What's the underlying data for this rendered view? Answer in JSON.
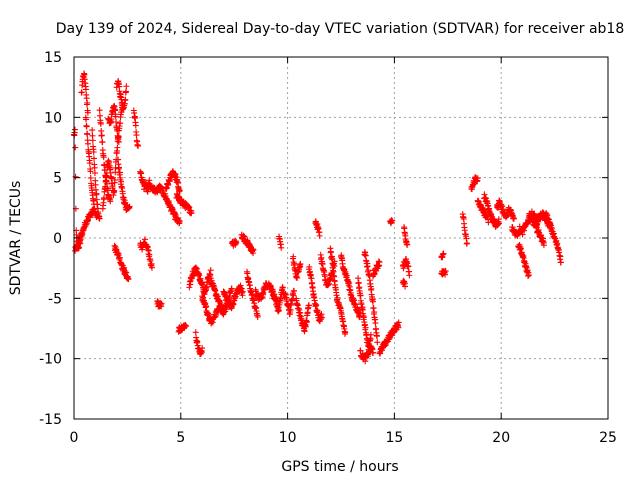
{
  "chart_data": {
    "type": "scatter",
    "title": "Day 139 of 2024, Sidereal Day-to-day VTEC variation (SDTVAR) for receiver ab18",
    "xlabel": "GPS time / hours",
    "ylabel": "SDTVAR / TECUs",
    "xlim": [
      0,
      25
    ],
    "ylim": [
      -15,
      15
    ],
    "xticks": [
      0,
      5,
      10,
      15,
      20,
      25
    ],
    "yticks": [
      -15,
      -10,
      -5,
      0,
      5,
      10,
      15
    ],
    "grid": true,
    "marker": "+",
    "color": "#ff0000",
    "series": [
      {
        "name": "SDTVAR",
        "segments": [
          {
            "from": 0.0,
            "to": 0.35,
            "values": [
              8.5,
              8.8,
              0.5,
              -0.5,
              -0.8,
              -0.6,
              -0.2,
              0.4
            ]
          },
          {
            "from": 0.05,
            "to": 0.9,
            "values": [
              -1.0,
              -0.6,
              0.0,
              0.6,
              1.2,
              1.6,
              2.0,
              2.2
            ]
          },
          {
            "from": 0.35,
            "to": 0.65,
            "values": [
              12.0,
              13.2,
              13.5,
              12.8,
              11.5,
              10.5
            ]
          },
          {
            "from": 0.55,
            "to": 1.05,
            "values": [
              10.0,
              8.5,
              7.0,
              5.5,
              4.0,
              3.0,
              2.2,
              1.8
            ]
          },
          {
            "from": 0.85,
            "to": 1.2,
            "values": [
              9.0,
              6.5,
              4.0,
              2.5,
              1.5
            ]
          },
          {
            "from": 1.2,
            "to": 1.7,
            "values": [
              10.5,
              9.0,
              7.5,
              6.0,
              5.0,
              4.2,
              3.5,
              3.0
            ]
          },
          {
            "from": 1.35,
            "to": 2.25,
            "values": [
              2.5,
              4.5,
              6.5,
              5.0,
              3.5,
              7.0,
              9.0,
              11.0
            ]
          },
          {
            "from": 1.6,
            "to": 2.1,
            "values": [
              10.0,
              9.5,
              10.5,
              11.0,
              9.0,
              8.0
            ]
          },
          {
            "from": 2.0,
            "to": 2.45,
            "values": [
              12.5,
              13.0,
              12.0,
              11.5,
              10.5,
              11.0,
              12.5
            ]
          },
          {
            "from": 2.05,
            "to": 2.6,
            "values": [
              6.5,
              5.5,
              4.5,
              3.5,
              3.0,
              2.5,
              2.6,
              2.7
            ]
          },
          {
            "from": 1.9,
            "to": 2.55,
            "values": [
              -0.8,
              -1.2,
              -1.8,
              -2.5,
              -3.0,
              -3.4
            ]
          },
          {
            "from": 2.8,
            "to": 3.0,
            "values": [
              10.5,
              10.0,
              9.0,
              8.0,
              7.5
            ]
          },
          {
            "from": 3.1,
            "to": 3.7,
            "values": [
              5.5,
              4.8,
              4.2,
              4.5,
              4.0,
              4.6,
              4.2,
              3.8
            ]
          },
          {
            "from": 3.1,
            "to": 3.65,
            "values": [
              -0.5,
              -0.8,
              -0.3,
              -0.7,
              -1.5,
              -2.5
            ]
          },
          {
            "from": 3.9,
            "to": 4.1,
            "values": [
              -5.4,
              -5.6,
              -5.5
            ]
          },
          {
            "from": 3.7,
            "to": 4.95,
            "values": [
              4.2,
              3.8,
              4.2,
              4.0,
              3.5,
              3.0,
              2.5,
              2.0,
              1.5,
              1.3
            ]
          },
          {
            "from": 4.3,
            "to": 4.95,
            "values": [
              4.0,
              4.5,
              5.0,
              5.5,
              5.2,
              4.6,
              3.8
            ]
          },
          {
            "from": 4.8,
            "to": 5.5,
            "values": [
              3.5,
              3.2,
              3.0,
              2.8,
              2.6,
              2.4,
              2.2
            ]
          },
          {
            "from": 4.9,
            "to": 5.25,
            "values": [
              -7.6,
              -7.4,
              -7.2
            ]
          },
          {
            "from": 5.4,
            "to": 6.4,
            "values": [
              -4.0,
              -3.0,
              -2.5,
              -3.0,
              -3.8,
              -4.5,
              -3.5,
              -2.8
            ]
          },
          {
            "from": 5.7,
            "to": 6.0,
            "values": [
              -8.0,
              -9.0,
              -9.6,
              -9.2
            ]
          },
          {
            "from": 6.0,
            "to": 7.0,
            "values": [
              -5.0,
              -5.5,
              -6.5,
              -7.0,
              -6.5,
              -6.0,
              -5.5,
              -6.0
            ]
          },
          {
            "from": 6.4,
            "to": 7.4,
            "values": [
              -3.5,
              -4.2,
              -4.8,
              -5.5,
              -6.2,
              -5.8,
              -4.8,
              -4.2
            ]
          },
          {
            "from": 7.0,
            "to": 7.9,
            "values": [
              -4.5,
              -5.0,
              -5.5,
              -5.8,
              -5.0,
              -4.5,
              -4.0,
              -4.6
            ]
          },
          {
            "from": 7.4,
            "to": 7.6,
            "values": [
              -0.5,
              -0.4
            ]
          },
          {
            "from": 7.85,
            "to": 8.4,
            "values": [
              0.2,
              -0.1,
              -0.4,
              -0.8,
              -1.2
            ]
          },
          {
            "from": 8.1,
            "to": 8.6,
            "values": [
              -3.0,
              -3.8,
              -4.5,
              -5.2,
              -5.8,
              -6.5
            ]
          },
          {
            "from": 8.5,
            "to": 9.4,
            "values": [
              -4.5,
              -5.0,
              -4.8,
              -4.0,
              -3.8,
              -4.3,
              -5.0
            ]
          },
          {
            "from": 9.3,
            "to": 9.85,
            "values": [
              -4.5,
              -4.8,
              -5.5,
              -6.0,
              -5.0,
              -4.2,
              -4.8
            ]
          },
          {
            "from": 9.6,
            "to": 9.7,
            "values": [
              0.0,
              -0.6
            ]
          },
          {
            "from": 9.9,
            "to": 10.3,
            "values": [
              -4.8,
              -5.5,
              -6.2,
              -5.0,
              -4.5
            ]
          },
          {
            "from": 10.25,
            "to": 10.6,
            "values": [
              -1.5,
              -2.5,
              -3.2,
              -2.8,
              -2.0
            ]
          },
          {
            "from": 10.4,
            "to": 11.0,
            "values": [
              -5.0,
              -5.8,
              -6.5,
              -7.2,
              -7.6,
              -6.8,
              -5.5
            ]
          },
          {
            "from": 11.0,
            "to": 11.6,
            "values": [
              -2.5,
              -3.2,
              -4.5,
              -5.5,
              -6.2,
              -6.8,
              -6.4
            ]
          },
          {
            "from": 11.3,
            "to": 11.5,
            "values": [
              1.4,
              0.4
            ]
          },
          {
            "from": 11.55,
            "to": 12.2,
            "values": [
              -1.5,
              -2.5,
              -3.5,
              -4.0,
              -3.5,
              -2.8,
              -2.0
            ]
          },
          {
            "from": 12.0,
            "to": 12.7,
            "values": [
              -1.0,
              -2.0,
              -3.5,
              -5.0,
              -5.5,
              -6.2,
              -7.0,
              -8.0
            ]
          },
          {
            "from": 12.5,
            "to": 13.4,
            "values": [
              -1.5,
              -2.5,
              -3.2,
              -4.0,
              -5.0,
              -5.5,
              -6.0,
              -6.5
            ]
          },
          {
            "from": 13.3,
            "to": 13.9,
            "values": [
              -3.5,
              -4.5,
              -5.5,
              -6.5,
              -7.5,
              -8.5,
              -9.0,
              -8.0
            ]
          },
          {
            "from": 13.4,
            "to": 14.0,
            "values": [
              -9.5,
              -9.8,
              -10.0,
              -9.6,
              -9.0,
              -9.4
            ]
          },
          {
            "from": 13.6,
            "to": 14.2,
            "values": [
              -1.2,
              -2.0,
              -3.0,
              -4.0,
              -5.5,
              -7.0,
              -8.5
            ]
          },
          {
            "from": 14.0,
            "to": 14.3,
            "values": [
              -3.0,
              -2.5,
              -2.0
            ]
          },
          {
            "from": 14.3,
            "to": 15.2,
            "values": [
              -9.5,
              -9.0,
              -8.5,
              -8.0,
              -7.5,
              -7.2
            ]
          },
          {
            "from": 14.8,
            "to": 14.9,
            "values": [
              1.4
            ]
          },
          {
            "from": 15.4,
            "to": 15.7,
            "values": [
              -2.5,
              -2.0,
              -1.8,
              -2.2,
              -3.0
            ]
          },
          {
            "from": 15.45,
            "to": 15.6,
            "values": [
              0.8,
              0.0,
              -0.5
            ]
          },
          {
            "from": 15.4,
            "to": 15.5,
            "values": [
              -3.5,
              -3.8
            ]
          },
          {
            "from": 17.2,
            "to": 17.3,
            "values": [
              -1.5
            ]
          },
          {
            "from": 17.2,
            "to": 17.4,
            "values": [
              -2.8,
              -3.0,
              -2.9
            ]
          },
          {
            "from": 18.2,
            "to": 18.4,
            "values": [
              2.2,
              0.5,
              -0.5
            ]
          },
          {
            "from": 18.6,
            "to": 18.9,
            "values": [
              4.0,
              4.5,
              5.0,
              4.8
            ]
          },
          {
            "from": 18.9,
            "to": 19.4,
            "values": [
              3.0,
              2.5,
              2.0,
              1.5
            ]
          },
          {
            "from": 19.2,
            "to": 19.9,
            "values": [
              3.5,
              3.0,
              2.0,
              1.5,
              1.0,
              1.4
            ]
          },
          {
            "from": 19.8,
            "to": 20.6,
            "values": [
              2.5,
              3.0,
              2.5,
              2.0,
              1.8,
              2.4,
              2.0,
              1.5
            ]
          },
          {
            "from": 20.5,
            "to": 21.0,
            "values": [
              0.8,
              0.5,
              0.3,
              0.8,
              0.6
            ]
          },
          {
            "from": 20.8,
            "to": 21.3,
            "values": [
              -0.5,
              -1.0,
              -1.8,
              -2.5,
              -3.2
            ]
          },
          {
            "from": 21.0,
            "to": 21.7,
            "values": [
              0.5,
              1.0,
              1.5,
              2.0,
              1.8,
              1.5
            ]
          },
          {
            "from": 21.3,
            "to": 22.0,
            "values": [
              2.0,
              1.6,
              1.2,
              0.8,
              0.4,
              0.0,
              -0.4
            ]
          },
          {
            "from": 21.6,
            "to": 22.3,
            "values": [
              1.0,
              1.5,
              1.8,
              2.0,
              1.6,
              1.2,
              1.0
            ]
          },
          {
            "from": 22.1,
            "to": 22.8,
            "values": [
              2.0,
              1.5,
              1.0,
              0.5,
              0.0,
              -0.5,
              -1.0,
              -2.0
            ]
          }
        ]
      }
    ]
  }
}
